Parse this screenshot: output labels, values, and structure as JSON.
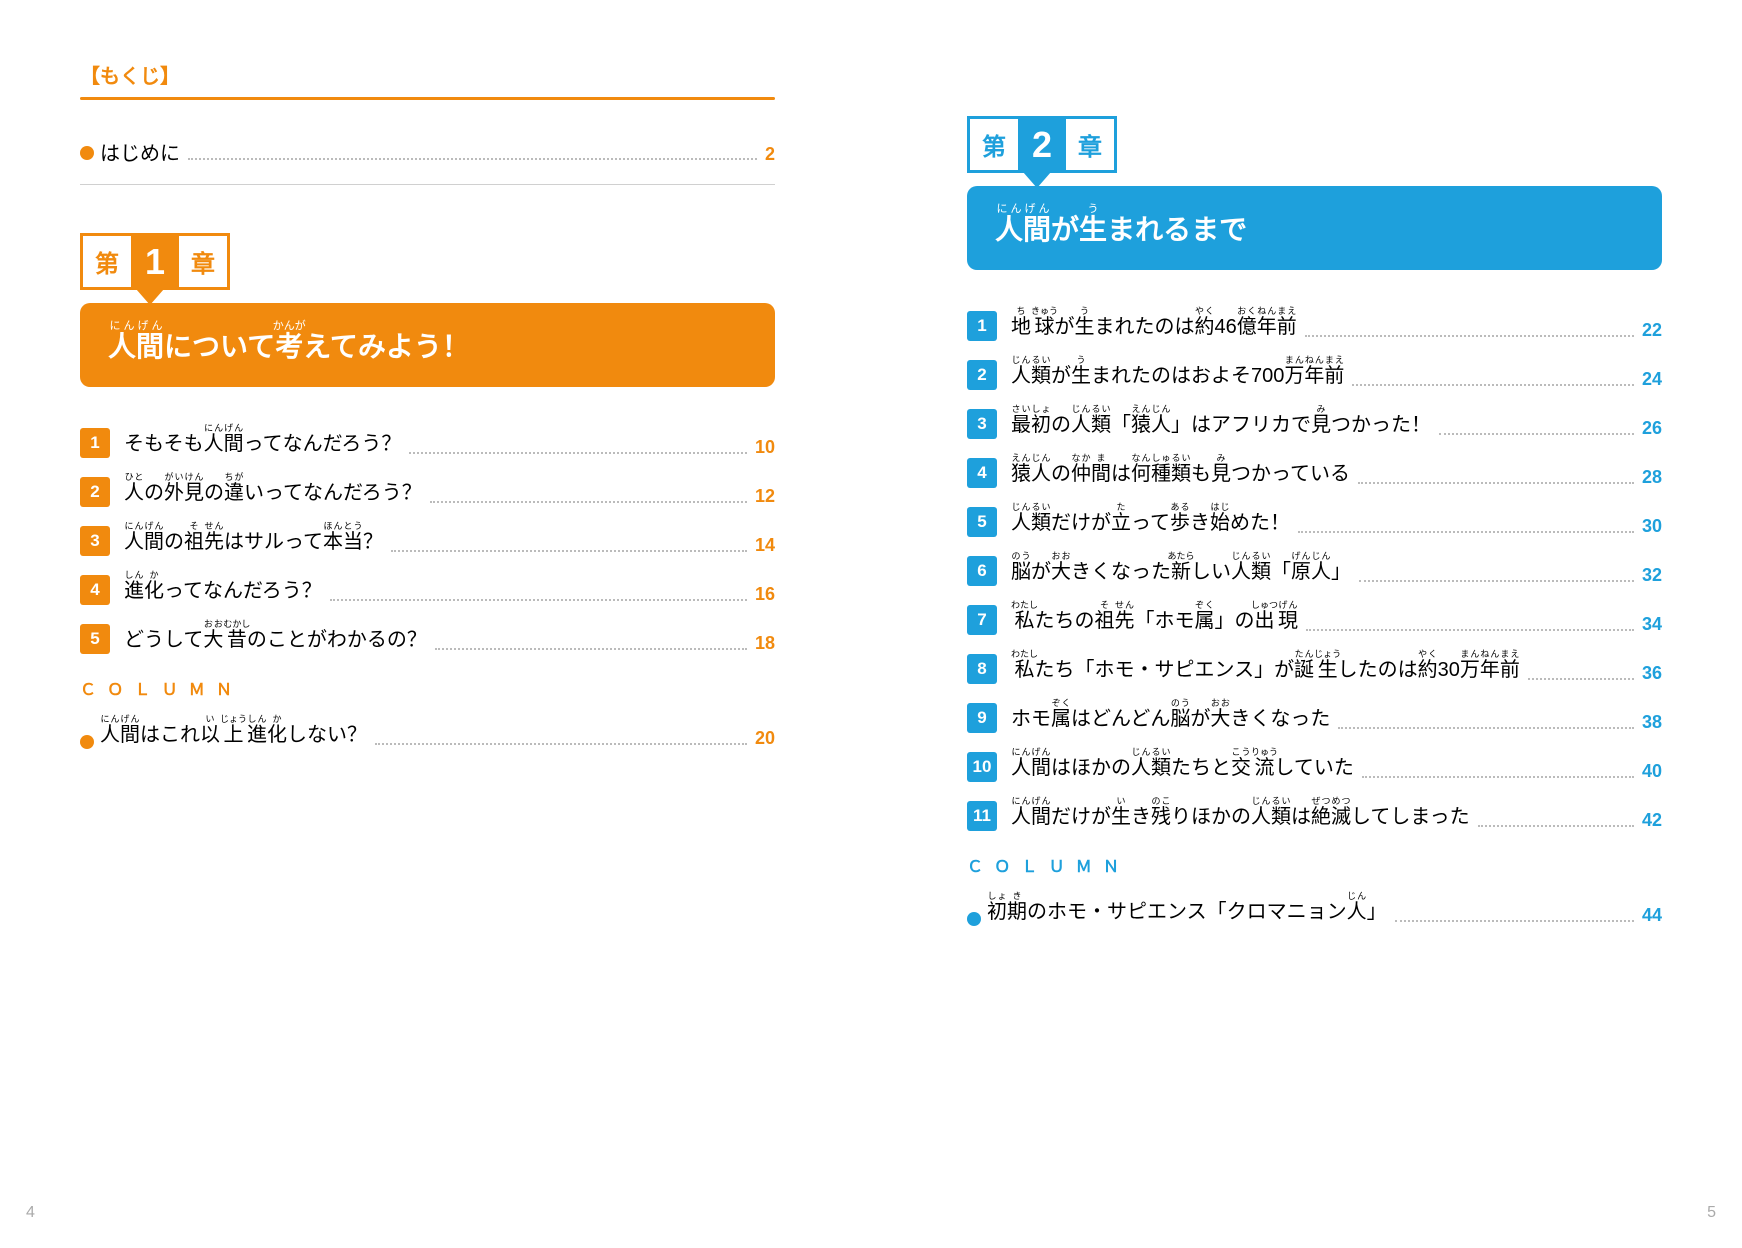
{
  "header_label": "【もくじ】",
  "intro_label": "はじめに",
  "intro_page": "2",
  "page_left_num": "4",
  "page_right_num": "5",
  "column_label": "ＣＯＬＵＭＮ",
  "colors": {
    "orange": "#f18a0e",
    "blue": "#1ea0dc",
    "leader": "#bbbbbb"
  },
  "chapter1": {
    "color": "#f18a0e",
    "pre": "第",
    "num": "1",
    "post": "章",
    "title_html": "<ruby>人<rt>にん</rt></ruby><ruby>間<rt>げん</rt></ruby>について<ruby>考<rt>かんが</rt></ruby>えてみよう！",
    "items": [
      {
        "n": "1",
        "t": "そもそも<ruby>人<rt>にん</rt></ruby><ruby>間<rt>げん</rt></ruby>ってなんだろう？",
        "p": "10"
      },
      {
        "n": "2",
        "t": "<ruby>人<rt>ひと</rt></ruby>の<ruby>外<rt>がい</rt></ruby><ruby>見<rt>けん</rt></ruby>の<ruby>違<rt>ちが</rt></ruby>いってなんだろう？",
        "p": "12"
      },
      {
        "n": "3",
        "t": "<ruby>人<rt>にん</rt></ruby><ruby>間<rt>げん</rt></ruby>の<ruby>祖<rt>そ</rt></ruby><ruby>先<rt>せん</rt></ruby>はサルって<ruby>本<rt>ほん</rt></ruby><ruby>当<rt>とう</rt></ruby>？",
        "p": "14"
      },
      {
        "n": "4",
        "t": "<ruby>進<rt>しん</rt></ruby><ruby>化<rt>か</rt></ruby>ってなんだろう？",
        "p": "16"
      },
      {
        "n": "5",
        "t": "どうして<ruby>大<rt>おお</rt></ruby><ruby>昔<rt>むかし</rt></ruby>のことがわかるの？",
        "p": "18"
      }
    ],
    "column_items": [
      {
        "t": "<ruby>人<rt>にん</rt></ruby><ruby>間<rt>げん</rt></ruby>はこれ<ruby>以<rt>い</rt></ruby><ruby>上<rt>じょう</rt></ruby><ruby>進<rt>しん</rt></ruby><ruby>化<rt>か</rt></ruby>しない？",
        "p": "20"
      }
    ]
  },
  "chapter2": {
    "color": "#1ea0dc",
    "pre": "第",
    "num": "2",
    "post": "章",
    "title_html": "<ruby>人<rt>にん</rt></ruby><ruby>間<rt>げん</rt></ruby>が<ruby>生<rt>う</rt></ruby>まれるまで",
    "items": [
      {
        "n": "1",
        "t": "<ruby>地<rt>ち</rt></ruby><ruby>球<rt>きゅう</rt></ruby>が<ruby>生<rt>う</rt></ruby>まれたのは<ruby>約<rt>やく</rt></ruby>46<ruby>億<rt>おく</rt></ruby><ruby>年<rt>ねん</rt></ruby><ruby>前<rt>まえ</rt></ruby>",
        "p": "22"
      },
      {
        "n": "2",
        "t": "<ruby>人<rt>じん</rt></ruby><ruby>類<rt>るい</rt></ruby>が<ruby>生<rt>う</rt></ruby>まれたのはおよそ700<ruby>万<rt>まん</rt></ruby><ruby>年<rt>ねん</rt></ruby><ruby>前<rt>まえ</rt></ruby>",
        "p": "24"
      },
      {
        "n": "3",
        "t": "<ruby>最<rt>さい</rt></ruby><ruby>初<rt>しょ</rt></ruby>の<ruby>人<rt>じん</rt></ruby><ruby>類<rt>るい</rt></ruby>「<ruby>猿<rt>えん</rt></ruby><ruby>人<rt>じん</rt></ruby>」はアフリカで<ruby>見<rt>み</rt></ruby>つかった！",
        "p": "26"
      },
      {
        "n": "4",
        "t": "<ruby>猿<rt>えん</rt></ruby><ruby>人<rt>じん</rt></ruby>の<ruby>仲<rt>なか</rt></ruby><ruby>間<rt>ま</rt></ruby>は<ruby>何<rt>なん</rt></ruby><ruby>種<rt>しゅ</rt></ruby><ruby>類<rt>るい</rt></ruby>も<ruby>見<rt>み</rt></ruby>つかっている",
        "p": "28"
      },
      {
        "n": "5",
        "t": "<ruby>人<rt>じん</rt></ruby><ruby>類<rt>るい</rt></ruby>だけが<ruby>立<rt>た</rt></ruby>って<ruby>歩<rt>ある</rt></ruby>き<ruby>始<rt>はじ</rt></ruby>めた！",
        "p": "30"
      },
      {
        "n": "6",
        "t": "<ruby>脳<rt>のう</rt></ruby>が<ruby>大<rt>おお</rt></ruby>きくなった<ruby>新<rt>あたら</rt></ruby>しい<ruby>人<rt>じん</rt></ruby><ruby>類<rt>るい</rt></ruby>「<ruby>原<rt>げん</rt></ruby><ruby>人<rt>じん</rt></ruby>」",
        "p": "32"
      },
      {
        "n": "7",
        "t": "<ruby>私<rt>わたし</rt></ruby>たちの<ruby>祖<rt>そ</rt></ruby><ruby>先<rt>せん</rt></ruby>「ホモ<ruby>属<rt>ぞく</rt></ruby>」の<ruby>出<rt>しゅつ</rt></ruby><ruby>現<rt>げん</rt></ruby>",
        "p": "34"
      },
      {
        "n": "8",
        "t": "<ruby>私<rt>わたし</rt></ruby>たち「ホモ・サピエンス」が<ruby>誕<rt>たん</rt></ruby><ruby>生<rt>じょう</rt></ruby>したのは<ruby>約<rt>やく</rt></ruby>30<ruby>万<rt>まん</rt></ruby><ruby>年<rt>ねん</rt></ruby><ruby>前<rt>まえ</rt></ruby>",
        "p": "36"
      },
      {
        "n": "9",
        "t": "ホモ<ruby>属<rt>ぞく</rt></ruby>はどんどん<ruby>脳<rt>のう</rt></ruby>が<ruby>大<rt>おお</rt></ruby>きくなった",
        "p": "38"
      },
      {
        "n": "10",
        "t": "<ruby>人<rt>にん</rt></ruby><ruby>間<rt>げん</rt></ruby>はほかの<ruby>人<rt>じん</rt></ruby><ruby>類<rt>るい</rt></ruby>たちと<ruby>交<rt>こう</rt></ruby><ruby>流<rt>りゅう</rt></ruby>していた",
        "p": "40"
      },
      {
        "n": "11",
        "t": "<ruby>人<rt>にん</rt></ruby><ruby>間<rt>げん</rt></ruby>だけが<ruby>生<rt>い</rt></ruby>き<ruby>残<rt>のこ</rt></ruby>りほかの<ruby>人<rt>じん</rt></ruby><ruby>類<rt>るい</rt></ruby>は<ruby>絶<rt>ぜつ</rt></ruby><ruby>滅<rt>めつ</rt></ruby>してしまった",
        "p": "42"
      }
    ],
    "column_items": [
      {
        "t": "<ruby>初<rt>しょ</rt></ruby><ruby>期<rt>き</rt></ruby>のホモ・サピエンス「クロマニョン<ruby>人<rt>じん</rt></ruby>」",
        "p": "44"
      }
    ]
  }
}
